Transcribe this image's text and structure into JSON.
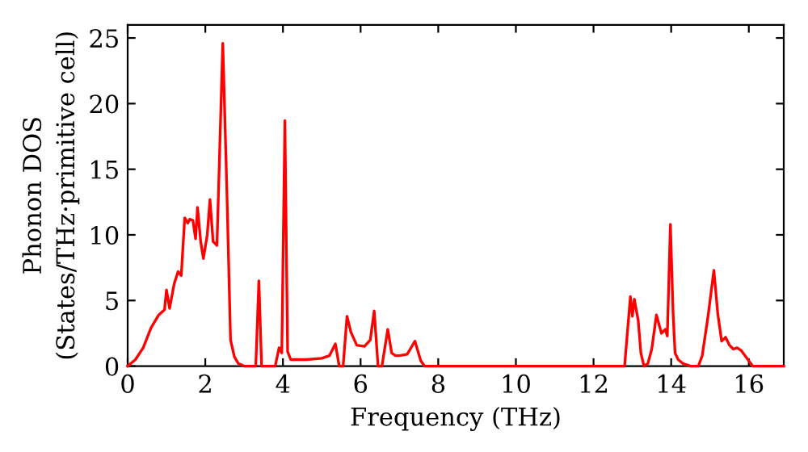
{
  "chart_data": {
    "type": "line",
    "xlabel": "Frequency (THz)",
    "ylabel": "Phonon DOS\n(States/THz·primitive cell)",
    "series": [
      {
        "color": "#ff0000",
        "x": [
          0,
          0.2,
          0.4,
          0.6,
          0.8,
          0.95,
          1.0,
          1.08,
          1.2,
          1.3,
          1.38,
          1.47,
          1.55,
          1.6,
          1.68,
          1.75,
          1.8,
          1.88,
          1.95,
          2.05,
          2.12,
          2.2,
          2.3,
          2.45,
          2.55,
          2.65,
          2.75,
          2.85,
          3.0,
          3.3,
          3.38,
          3.45,
          3.8,
          3.9,
          3.97,
          4.05,
          4.12,
          4.2,
          4.6,
          5.0,
          5.2,
          5.35,
          5.45,
          5.55,
          5.65,
          5.75,
          5.9,
          6.1,
          6.25,
          6.35,
          6.45,
          6.55,
          6.7,
          6.8,
          6.9,
          7.0,
          7.2,
          7.4,
          7.55,
          7.65,
          12.8,
          12.95,
          13.0,
          13.05,
          13.15,
          13.22,
          13.3,
          13.4,
          13.5,
          13.62,
          13.75,
          13.85,
          13.9,
          13.98,
          14.05,
          14.1,
          14.18,
          14.3,
          14.5,
          14.7,
          14.8,
          14.95,
          15.1,
          15.2,
          15.3,
          15.4,
          15.5,
          15.6,
          15.7,
          15.8,
          15.9,
          16.1,
          16.9
        ],
        "values": [
          0,
          0.5,
          1.4,
          2.9,
          3.9,
          4.3,
          5.8,
          4.4,
          6.3,
          7.2,
          6.9,
          11.3,
          10.9,
          11.2,
          11.1,
          9.7,
          12.1,
          9.5,
          8.2,
          10,
          12.7,
          9.5,
          9.2,
          24.6,
          14,
          2,
          0.7,
          0.2,
          0,
          0,
          6.5,
          0,
          0,
          1.4,
          1.0,
          18.7,
          1.1,
          0.5,
          0.5,
          0.6,
          0.8,
          1.7,
          0,
          0,
          3.8,
          2.6,
          1.6,
          1.5,
          2,
          4.2,
          0,
          0,
          2.8,
          1.0,
          0.8,
          0.8,
          0.9,
          1.9,
          0.4,
          0,
          0,
          5.3,
          3.8,
          5.1,
          3.5,
          1,
          0,
          0.2,
          1.3,
          3.9,
          2.5,
          2.8,
          2.3,
          10.8,
          4,
          1,
          0.5,
          0.2,
          0,
          0,
          0.8,
          3.8,
          7.3,
          4,
          1.9,
          2.2,
          1.6,
          1.3,
          1.4,
          1.2,
          0.8,
          0,
          0
        ]
      }
    ],
    "xlim": [
      0,
      16.9
    ],
    "xticks": [
      0,
      2,
      4,
      6,
      8,
      10,
      12,
      14,
      16
    ],
    "ylim": [
      0,
      26
    ],
    "yticks": [
      0,
      5,
      10,
      15,
      20,
      25
    ],
    "grid": false,
    "legend": false,
    "marker": "none",
    "line_style": "solid"
  }
}
